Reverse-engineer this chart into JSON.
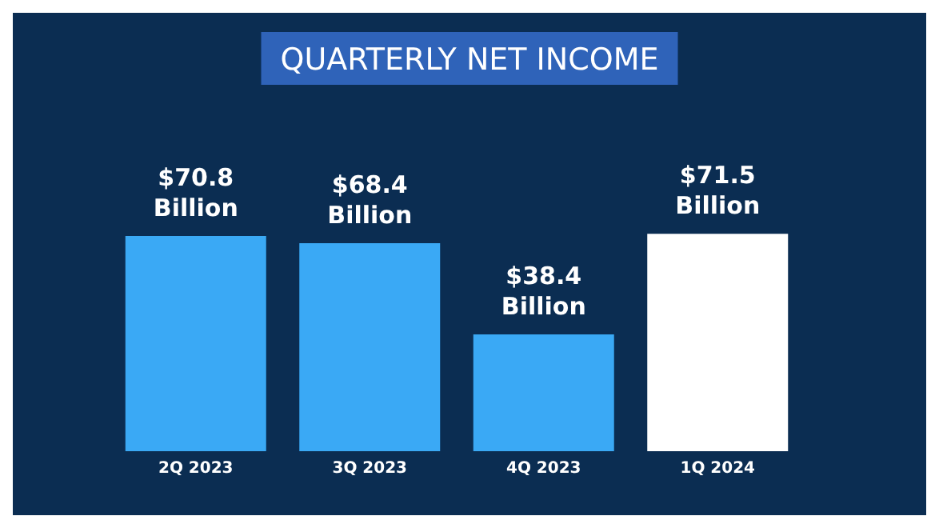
{
  "chart_data": {
    "type": "bar",
    "title": "QUARTERLY NET INCOME",
    "categories": [
      "2Q 2023",
      "3Q 2023",
      "4Q 2023",
      "1Q 2024"
    ],
    "values": [
      70.8,
      68.4,
      38.4,
      71.5
    ],
    "colors": [
      "#3aa9f5",
      "#3aa9f5",
      "#3aa9f5",
      "#ffffff"
    ],
    "value_labels": [
      "$70.8\nBillion",
      "$68.4\nBillion",
      "$38.4\nBillion",
      "$71.5\nBillion"
    ]
  }
}
